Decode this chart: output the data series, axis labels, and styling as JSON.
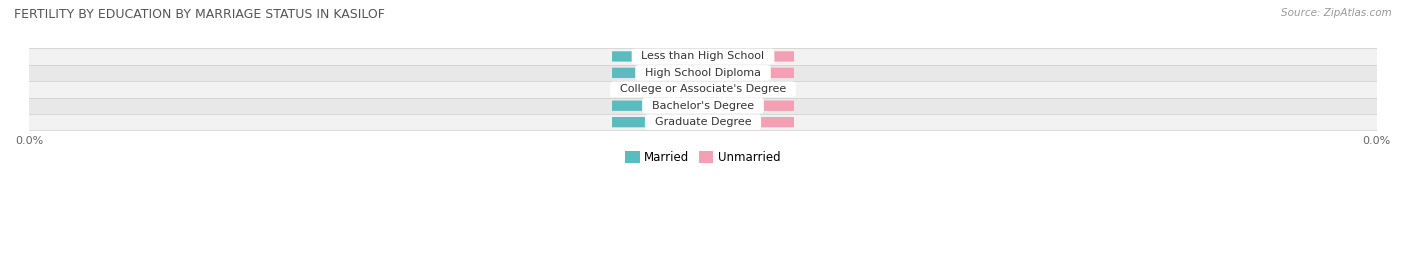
{
  "title": "FERTILITY BY EDUCATION BY MARRIAGE STATUS IN KASILOF",
  "source": "Source: ZipAtlas.com",
  "categories": [
    "Less than High School",
    "High School Diploma",
    "College or Associate's Degree",
    "Bachelor's Degree",
    "Graduate Degree"
  ],
  "married_values": [
    0.0,
    0.0,
    0.0,
    0.0,
    0.0
  ],
  "unmarried_values": [
    0.0,
    0.0,
    0.0,
    0.0,
    0.0
  ],
  "married_color": "#5bbcbf",
  "unmarried_color": "#f4a0b4",
  "row_bg_colors": [
    "#f2f2f2",
    "#e8e8e8"
  ],
  "category_color": "#333333",
  "title_color": "#555555",
  "bar_height": 0.62,
  "fixed_bar_width": 0.13,
  "figsize": [
    14.06,
    2.7
  ],
  "dpi": 100
}
